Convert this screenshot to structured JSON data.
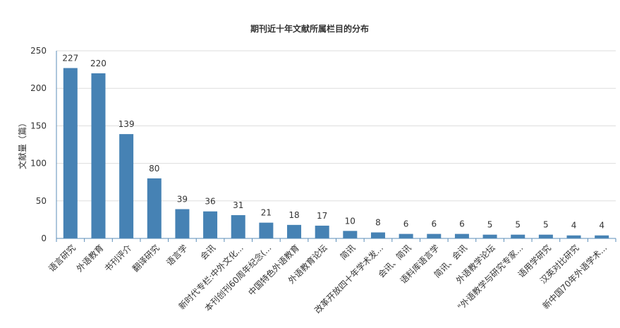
{
  "chart_data": {
    "type": "bar",
    "title": "期刊近十年文献所属栏目的分布",
    "xlabel": "",
    "ylabel": "文献量（篇）",
    "ylim": [
      0,
      250
    ],
    "yticks": [
      0,
      50,
      100,
      150,
      200,
      250
    ],
    "grid": true,
    "legend": "none",
    "categories": [
      "语言研究",
      "外语教育",
      "书刊评介",
      "翻译研究",
      "语言学",
      "会讯",
      "新时代专栏:中外文化...",
      "本刊创刊60周年纪念(...",
      "中国特色外语教育",
      "外语教育论坛",
      "简讯",
      "改革开放四十年学术发...",
      "会讯、简讯",
      "语料库语言学",
      "简讯、会讯",
      "外语教学论坛",
      "\"外语教学与研究专家...",
      "语用学研究",
      "汉英对比研究",
      "新中国70年外语学术..."
    ],
    "values": [
      227,
      220,
      139,
      80,
      39,
      36,
      31,
      21,
      18,
      17,
      10,
      8,
      6,
      6,
      6,
      5,
      5,
      5,
      4,
      4
    ],
    "colors": {
      "bar": "#4682b4",
      "axis": "#5b8db8",
      "grid": "#dddddd",
      "text": "#333333",
      "title": "#333333"
    }
  }
}
